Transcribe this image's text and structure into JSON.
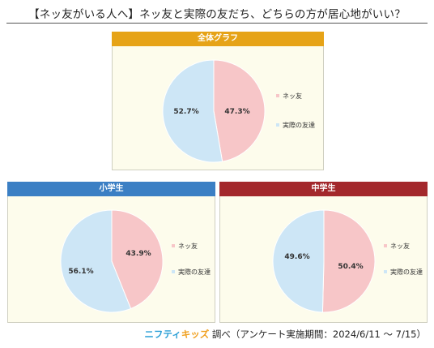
{
  "page": {
    "title": "【ネッ友がいる人へ】ネッ友と実際の友だち、どちらの方が居心地がいい？",
    "footer": {
      "brand_part1": "ニフティ",
      "brand_part2": "キッズ",
      "text": "調べ（アンケート実施期間：2024/6/11 ～ 7/15）"
    }
  },
  "colors": {
    "net_friend": "#f7c6c8",
    "real_friend": "#cde6f6",
    "panel_bg": "#fdfcec",
    "header_overall": "#e6a317",
    "header_elementary": "#3b7fc4",
    "header_middle": "#a3282c"
  },
  "chart_data": [
    {
      "type": "pie",
      "title": "全体グラフ",
      "labels": [
        "ネッ友",
        "実際の友達"
      ],
      "values": [
        47.3,
        52.7
      ],
      "value_labels": [
        "47.3%",
        "52.7%"
      ],
      "legend": "right"
    },
    {
      "type": "pie",
      "title": "小学生",
      "labels": [
        "ネッ友",
        "実際の友達"
      ],
      "values": [
        43.9,
        56.1
      ],
      "value_labels": [
        "43.9%",
        "56.1%"
      ],
      "legend": "right"
    },
    {
      "type": "pie",
      "title": "中学生",
      "labels": [
        "ネッ友",
        "実際の友達"
      ],
      "values": [
        50.4,
        49.6
      ],
      "value_labels": [
        "50.4%",
        "49.6%"
      ],
      "legend": "right"
    }
  ]
}
